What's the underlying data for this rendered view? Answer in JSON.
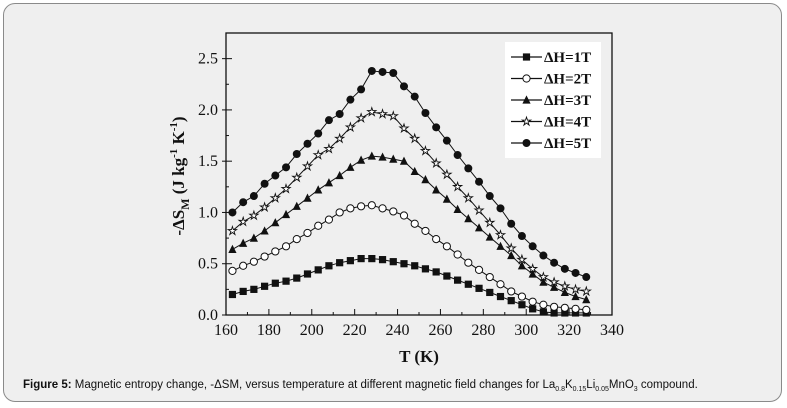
{
  "chart_data": {
    "type": "line",
    "title": "",
    "xlabel": "T (K)",
    "ylabel_main": "-ΔS",
    "ylabel_sub": "M",
    "ylabel_units": "(J kg",
    "ylabel_sup1": "-1",
    "ylabel_k": " K",
    "ylabel_sup2": "-1",
    "ylabel_close": ")",
    "xlim": [
      160,
      340
    ],
    "ylim": [
      0.0,
      2.75
    ],
    "xticks": [
      "160",
      "180",
      "200",
      "220",
      "240",
      "260",
      "280",
      "300",
      "320",
      "340"
    ],
    "yticks": [
      "0.0",
      "0.5",
      "1.0",
      "1.5",
      "2.0",
      "2.5"
    ],
    "legend_position": "top-right",
    "x": [
      163,
      168,
      173,
      178,
      183,
      188,
      193,
      198,
      203,
      208,
      213,
      218,
      223,
      228,
      233,
      238,
      243,
      248,
      253,
      258,
      263,
      268,
      273,
      278,
      283,
      288,
      293,
      298,
      303,
      308,
      313,
      318,
      323,
      328
    ],
    "series": [
      {
        "name": "ΔH=1T",
        "marker": "square",
        "values": [
          0.2,
          0.23,
          0.25,
          0.28,
          0.31,
          0.33,
          0.36,
          0.4,
          0.44,
          0.48,
          0.51,
          0.53,
          0.55,
          0.55,
          0.54,
          0.52,
          0.5,
          0.48,
          0.45,
          0.42,
          0.38,
          0.34,
          0.3,
          0.26,
          0.22,
          0.18,
          0.14,
          0.1,
          0.06,
          0.03,
          0.02,
          0.02,
          0.02,
          0.02
        ]
      },
      {
        "name": "ΔH=2T",
        "marker": "circle-open",
        "values": [
          0.43,
          0.48,
          0.52,
          0.57,
          0.62,
          0.67,
          0.74,
          0.8,
          0.87,
          0.93,
          1.0,
          1.04,
          1.06,
          1.07,
          1.04,
          1.01,
          0.97,
          0.89,
          0.82,
          0.74,
          0.67,
          0.59,
          0.51,
          0.44,
          0.37,
          0.3,
          0.23,
          0.18,
          0.13,
          0.1,
          0.08,
          0.07,
          0.06,
          0.05
        ]
      },
      {
        "name": "ΔH=3T",
        "marker": "triangle",
        "values": [
          0.64,
          0.7,
          0.75,
          0.82,
          0.9,
          0.98,
          1.06,
          1.14,
          1.22,
          1.29,
          1.36,
          1.44,
          1.51,
          1.55,
          1.54,
          1.52,
          1.5,
          1.4,
          1.32,
          1.22,
          1.13,
          1.03,
          0.94,
          0.85,
          0.76,
          0.67,
          0.58,
          0.48,
          0.4,
          0.32,
          0.27,
          0.22,
          0.18,
          0.15
        ]
      },
      {
        "name": "ΔH=4T",
        "marker": "star-open",
        "values": [
          0.82,
          0.91,
          0.97,
          1.05,
          1.14,
          1.23,
          1.34,
          1.45,
          1.56,
          1.62,
          1.72,
          1.83,
          1.92,
          1.98,
          1.96,
          1.94,
          1.82,
          1.72,
          1.6,
          1.48,
          1.37,
          1.25,
          1.14,
          1.02,
          0.9,
          0.78,
          0.65,
          0.54,
          0.45,
          0.37,
          0.32,
          0.28,
          0.25,
          0.23
        ]
      },
      {
        "name": "ΔH=5T",
        "marker": "circle",
        "values": [
          1.0,
          1.1,
          1.16,
          1.28,
          1.36,
          1.44,
          1.57,
          1.67,
          1.77,
          1.9,
          1.96,
          2.1,
          2.2,
          2.38,
          2.37,
          2.36,
          2.23,
          2.13,
          1.97,
          1.83,
          1.7,
          1.56,
          1.43,
          1.3,
          1.16,
          1.04,
          0.89,
          0.77,
          0.67,
          0.58,
          0.51,
          0.45,
          0.41,
          0.37
        ]
      }
    ]
  },
  "caption": {
    "label": "Figure 5:",
    "text": " Magnetic entropy change, -ΔSM, versus temperature at different magnetic field changes for ",
    "formula": [
      {
        "t": "La",
        "s": "0.8"
      },
      {
        "t": "K",
        "s": "0.15"
      },
      {
        "t": "Li",
        "s": "0.05"
      },
      {
        "t": "MnO",
        "s": "3"
      }
    ],
    "tail": " compound."
  },
  "colors": {
    "ink": "#111111",
    "background": "#efefef",
    "legend_bg": "#ffffff"
  }
}
